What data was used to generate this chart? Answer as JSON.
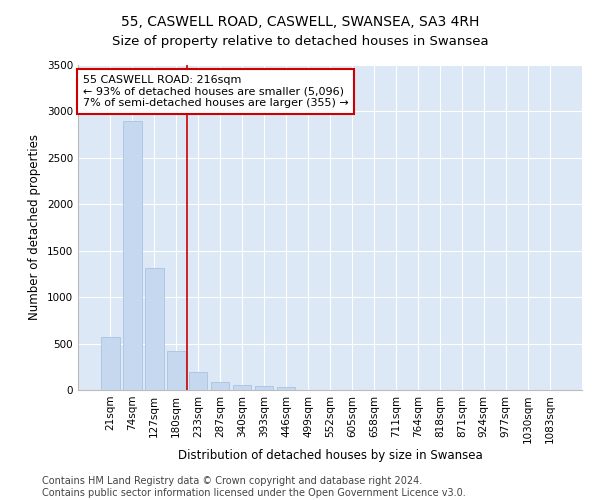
{
  "title": "55, CASWELL ROAD, CASWELL, SWANSEA, SA3 4RH",
  "subtitle": "Size of property relative to detached houses in Swansea",
  "xlabel": "Distribution of detached houses by size in Swansea",
  "ylabel": "Number of detached properties",
  "categories": [
    "21sqm",
    "74sqm",
    "127sqm",
    "180sqm",
    "233sqm",
    "287sqm",
    "340sqm",
    "393sqm",
    "446sqm",
    "499sqm",
    "552sqm",
    "605sqm",
    "658sqm",
    "711sqm",
    "764sqm",
    "818sqm",
    "871sqm",
    "924sqm",
    "977sqm",
    "1030sqm",
    "1083sqm"
  ],
  "values": [
    570,
    2900,
    1310,
    415,
    190,
    85,
    55,
    45,
    35,
    0,
    0,
    0,
    0,
    0,
    0,
    0,
    0,
    0,
    0,
    0,
    0
  ],
  "bar_color": "#c5d8ef",
  "bar_edge_color": "#a8c4e0",
  "vline_x": 3.5,
  "vline_color": "#cc0000",
  "annotation_text": "55 CASWELL ROAD: 216sqm\n← 93% of detached houses are smaller (5,096)\n7% of semi-detached houses are larger (355) →",
  "annotation_box_color": "#ffffff",
  "annotation_box_edge_color": "#cc0000",
  "ylim": [
    0,
    3500
  ],
  "yticks": [
    0,
    500,
    1000,
    1500,
    2000,
    2500,
    3000,
    3500
  ],
  "bg_color": "#dce8f5",
  "footer_line1": "Contains HM Land Registry data © Crown copyright and database right 2024.",
  "footer_line2": "Contains public sector information licensed under the Open Government Licence v3.0.",
  "title_fontsize": 10,
  "axis_label_fontsize": 8.5,
  "tick_fontsize": 7.5,
  "annotation_fontsize": 8,
  "footer_fontsize": 7
}
